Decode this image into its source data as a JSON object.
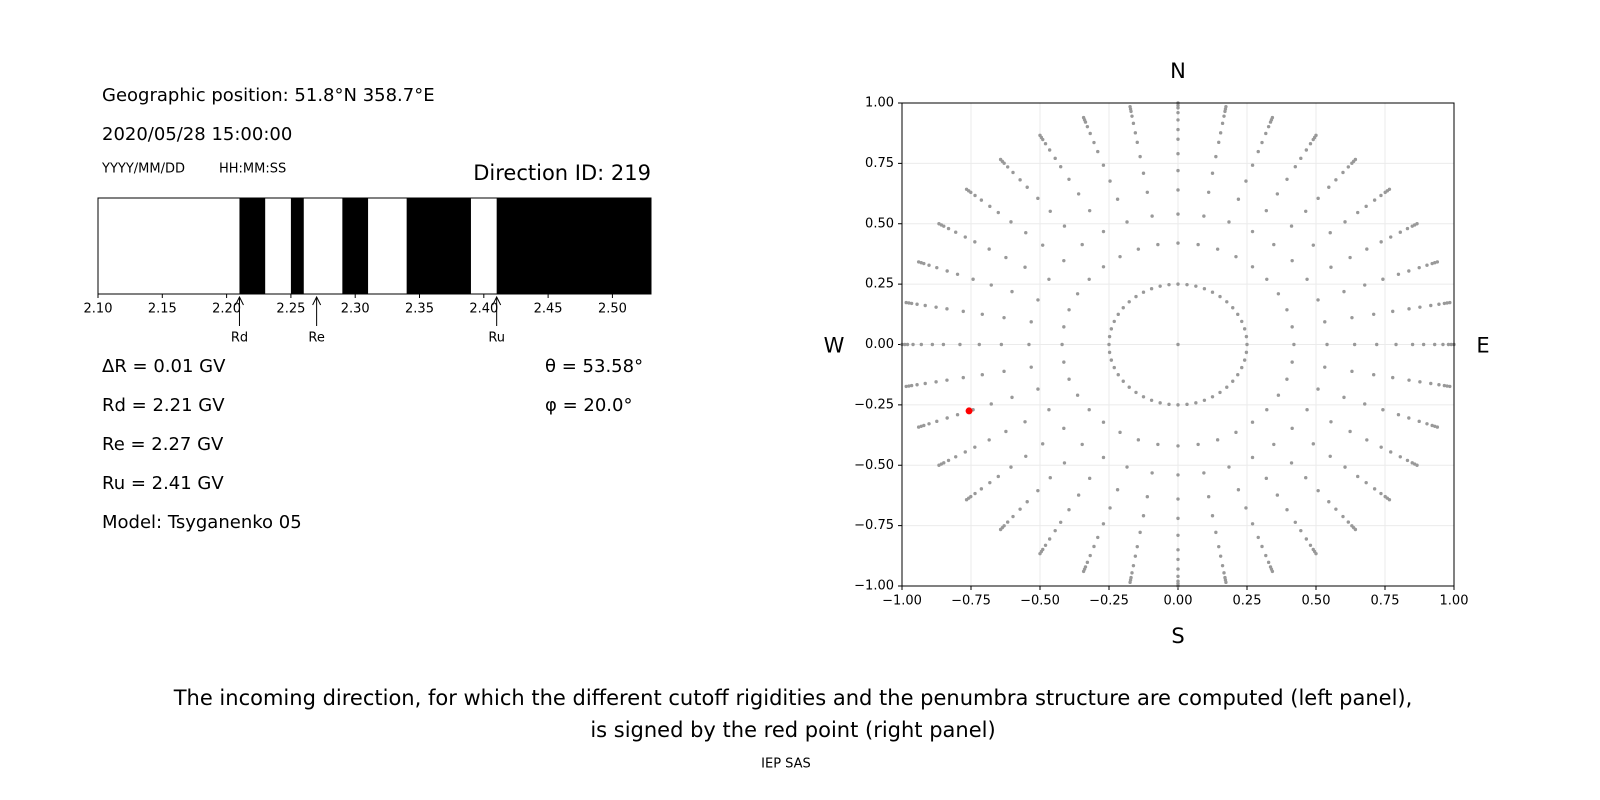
{
  "info": {
    "position": "Geographic position: 51.8°N 358.7°E",
    "datetime": "2020/05/28 15:00:00",
    "date_format": "YYYY/MM/DD",
    "time_format": "HH:MM:SS",
    "direction": "Direction ID: 219",
    "delta_r": "ΔR = 0.01 GV",
    "rd": "Rd = 2.21 GV",
    "re": "Re = 2.27 GV",
    "ru": "Ru = 2.41 GV",
    "model": "Model: Tsyganenko 05",
    "theta": "θ = 53.58°",
    "phi": "φ = 20.0°"
  },
  "chart_data": [
    {
      "type": "band",
      "xlim": [
        2.1,
        2.53
      ],
      "xticks": [
        {
          "value": 2.1,
          "label": "2.10"
        },
        {
          "value": 2.15,
          "label": "2.15"
        },
        {
          "value": 2.2,
          "label": "2.20"
        },
        {
          "value": 2.25,
          "label": "2.25"
        },
        {
          "value": 2.3,
          "label": "2.30"
        },
        {
          "value": 2.35,
          "label": "2.35"
        },
        {
          "value": 2.4,
          "label": "2.40"
        },
        {
          "value": 2.45,
          "label": "2.45"
        },
        {
          "value": 2.5,
          "label": "2.50"
        }
      ],
      "color": "#000000",
      "bands": [
        {
          "start": 2.21,
          "end": 2.23
        },
        {
          "start": 2.25,
          "end": 2.26
        },
        {
          "start": 2.29,
          "end": 2.31
        },
        {
          "start": 2.34,
          "end": 2.39
        },
        {
          "start": 2.41,
          "end": 2.53
        }
      ],
      "annotations": [
        {
          "label": "Rd",
          "x": 2.21
        },
        {
          "label": "Re",
          "x": 2.27
        },
        {
          "label": "Ru",
          "x": 2.41
        }
      ]
    },
    {
      "type": "scatter",
      "xlim": [
        -1,
        1
      ],
      "ylim": [
        -1,
        1
      ],
      "grid": true,
      "xticks": [
        {
          "value": -1,
          "label": "−1.00"
        },
        {
          "value": -0.75,
          "label": "−0.75"
        },
        {
          "value": -0.5,
          "label": "−0.50"
        },
        {
          "value": -0.25,
          "label": "−0.25"
        },
        {
          "value": 0,
          "label": "0.00"
        },
        {
          "value": 0.25,
          "label": "0.25"
        },
        {
          "value": 0.5,
          "label": "0.50"
        },
        {
          "value": 0.75,
          "label": "0.75"
        },
        {
          "value": 1,
          "label": "1.00"
        }
      ],
      "yticks": [
        {
          "value": -1,
          "label": "−1.00"
        },
        {
          "value": -0.75,
          "label": "−0.75"
        },
        {
          "value": -0.5,
          "label": "−0.50"
        },
        {
          "value": -0.25,
          "label": "−0.25"
        },
        {
          "value": 0,
          "label": "0.00"
        },
        {
          "value": 0.25,
          "label": "0.25"
        },
        {
          "value": 0.5,
          "label": "0.50"
        },
        {
          "value": 0.75,
          "label": "0.75"
        },
        {
          "value": 1,
          "label": "1.00"
        }
      ],
      "compass": {
        "north": "N",
        "south": "S",
        "west": "W",
        "east": "E"
      },
      "spokes": {
        "color": "#999999",
        "azimuths": [
          0,
          10,
          20,
          30,
          40,
          50,
          60,
          70,
          80,
          90,
          100,
          110,
          120,
          130,
          140,
          150,
          160,
          170,
          180,
          190,
          200,
          210,
          220,
          230,
          240,
          250,
          260,
          270,
          280,
          290,
          300,
          310,
          320,
          330,
          340,
          350
        ],
        "radii": [
          0.42,
          0.54,
          0.64,
          0.72,
          0.79,
          0.85,
          0.89,
          0.93,
          0.96,
          0.98,
          0.99,
          1.0
        ]
      },
      "ring": {
        "radius": 0.25,
        "azimuths": [
          0,
          7.5,
          15,
          22.5,
          30,
          37.5,
          45,
          52.5,
          60,
          67.5,
          75,
          82.5,
          90,
          97.5,
          105,
          112.5,
          120,
          127.5,
          135,
          142.5,
          150,
          157.5,
          165,
          172.5,
          180,
          187.5,
          195,
          202.5,
          210,
          217.5,
          225,
          232.5,
          240,
          247.5,
          255,
          262.5,
          270,
          277.5,
          285,
          292.5,
          300,
          307.5,
          315,
          322.5,
          330,
          337.5,
          345,
          352.5
        ]
      },
      "origin": {
        "x": 0,
        "y": 0
      },
      "point": {
        "x": -0.757,
        "y": -0.275,
        "color": "#ff0000"
      }
    }
  ],
  "caption": [
    "The incoming direction, for which the different cutoff rigidities and the penumbra structure are computed (left panel),",
    "is signed by the red point (right panel)"
  ],
  "footer": "IEP SAS"
}
